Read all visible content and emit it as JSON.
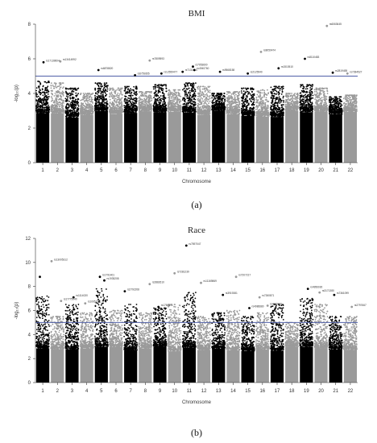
{
  "chart_data": [
    {
      "type": "scatter",
      "title": "BMI",
      "ylabel": "-log₁₀(p)",
      "xlabel": "Chromosome",
      "caption": "(a)",
      "ylim": [
        0,
        8
      ],
      "yticks": [
        0,
        2,
        4,
        6,
        8
      ],
      "chromosomes": [
        "1",
        "2",
        "3",
        "4",
        "5",
        "6",
        "7",
        "8",
        "9",
        "10",
        "11",
        "12",
        "13",
        "14",
        "15",
        "16",
        "17",
        "18",
        "19",
        "20",
        "21",
        "22"
      ],
      "threshold": 5,
      "threshold_color": "#5060a8",
      "colors": [
        "#000000",
        "#9a9a9a"
      ],
      "chrom_peaks": [
        4.7,
        4.6,
        4.3,
        4.0,
        4.6,
        4.3,
        4.4,
        4.1,
        4.5,
        4.2,
        4.6,
        4.4,
        4.0,
        4.1,
        4.3,
        4.2,
        4.4,
        4.0,
        4.5,
        4.3,
        3.8,
        3.9
      ],
      "hits": [
        {
          "chr": 1,
          "pos": 0.55,
          "y": 5.8,
          "label": "rs17139604"
        },
        {
          "chr": 2,
          "pos": 0.7,
          "y": 5.85,
          "label": "rs13414992"
        },
        {
          "chr": 5,
          "pos": 0.3,
          "y": 5.35,
          "label": "rs6878820"
        },
        {
          "chr": 7,
          "pos": 0.8,
          "y": 5.05,
          "label": "rs6759355"
        },
        {
          "chr": 8,
          "pos": 0.8,
          "y": 5.9,
          "label": "rs7809593"
        },
        {
          "chr": 9,
          "pos": 0.6,
          "y": 5.15,
          "label": "rs12559477"
        },
        {
          "chr": 11,
          "pos": 0.05,
          "y": 5.25,
          "label": "rs7131414"
        },
        {
          "chr": 11,
          "pos": 0.75,
          "y": 5.55,
          "label": "rs7953600"
        },
        {
          "chr": 11,
          "pos": 0.85,
          "y": 5.35,
          "label": "rs4940760"
        },
        {
          "chr": 13,
          "pos": 0.6,
          "y": 5.25,
          "label": "rs9568158"
        },
        {
          "chr": 15,
          "pos": 0.5,
          "y": 5.15,
          "label": "rs2125540"
        },
        {
          "chr": 16,
          "pos": 0.4,
          "y": 6.4,
          "label": "rs8050474"
        },
        {
          "chr": 17,
          "pos": 0.6,
          "y": 5.45,
          "label": "rs1510510"
        },
        {
          "chr": 19,
          "pos": 0.4,
          "y": 6.0,
          "label": "rs8110483"
        },
        {
          "chr": 20,
          "pos": 0.9,
          "y": 7.9,
          "label": "rs6063645"
        },
        {
          "chr": 21,
          "pos": 0.3,
          "y": 5.2,
          "label": "rs2819455"
        },
        {
          "chr": 22,
          "pos": 0.3,
          "y": 5.15,
          "label": "rs7284527"
        }
      ]
    },
    {
      "type": "scatter",
      "title": "Race",
      "ylabel": "-log₁₀(p)",
      "xlabel": "Chromosome",
      "caption": "(b)",
      "ylim": [
        0,
        12
      ],
      "yticks": [
        0,
        2,
        4,
        6,
        8,
        10,
        12
      ],
      "chromosomes": [
        "1",
        "2",
        "3",
        "4",
        "5",
        "6",
        "7",
        "8",
        "9",
        "10",
        "11",
        "12",
        "13",
        "14",
        "15",
        "16",
        "17",
        "18",
        "19",
        "20",
        "21",
        "22"
      ],
      "threshold": 5,
      "threshold_color": "#5060a8",
      "colors": [
        "#000000",
        "#9a9a9a"
      ],
      "chrom_peaks": [
        7.2,
        5.5,
        6.5,
        5.8,
        7.8,
        6.0,
        6.5,
        5.8,
        6.2,
        6.5,
        7.5,
        5.5,
        5.8,
        6.0,
        5.5,
        5.8,
        6.5,
        5.0,
        7.0,
        6.5,
        5.5,
        5.5
      ],
      "hits": [
        {
          "chr": 1,
          "pos": 0.3,
          "y": 8.8,
          "label": ""
        },
        {
          "chr": 2,
          "pos": 0.1,
          "y": 10.1,
          "label": "rs13005312"
        },
        {
          "chr": 2,
          "pos": 0.75,
          "y": 6.8,
          "label": "rs17775040"
        },
        {
          "chr": 3,
          "pos": 0.6,
          "y": 7.1,
          "label": "rs1114020"
        },
        {
          "chr": 4,
          "pos": 0.4,
          "y": 6.6,
          "label": "rs10951542"
        },
        {
          "chr": 5,
          "pos": 0.4,
          "y": 8.8,
          "label": "rs1791401"
        },
        {
          "chr": 5,
          "pos": 0.7,
          "y": 8.5,
          "label": "rs1935208"
        },
        {
          "chr": 7,
          "pos": 0.1,
          "y": 7.6,
          "label": "rs2792208"
        },
        {
          "chr": 8,
          "pos": 0.8,
          "y": 8.2,
          "label": "rs2882610"
        },
        {
          "chr": 9,
          "pos": 0.4,
          "y": 6.3,
          "label": "rs1786990"
        },
        {
          "chr": 10,
          "pos": 0.5,
          "y": 9.1,
          "label": "rs7281239"
        },
        {
          "chr": 11,
          "pos": 0.3,
          "y": 11.4,
          "label": "rs7597047"
        },
        {
          "chr": 12,
          "pos": 0.3,
          "y": 8.3,
          "label": "rs11169869"
        },
        {
          "chr": 13,
          "pos": 0.8,
          "y": 7.3,
          "label": "rs3919381"
        },
        {
          "chr": 14,
          "pos": 0.7,
          "y": 8.8,
          "label": "rs7207217"
        },
        {
          "chr": 15,
          "pos": 0.6,
          "y": 6.2,
          "label": "rs4986680"
        },
        {
          "chr": 16,
          "pos": 0.3,
          "y": 7.1,
          "label": "rs7260871"
        },
        {
          "chr": 16,
          "pos": 0.85,
          "y": 6.4,
          "label": "rs4939981"
        },
        {
          "chr": 19,
          "pos": 0.6,
          "y": 7.8,
          "label": "rs4956030"
        },
        {
          "chr": 20,
          "pos": 0.4,
          "y": 7.5,
          "label": "rs3171380"
        },
        {
          "chr": 21,
          "pos": 0.4,
          "y": 7.3,
          "label": "rs7361099"
        },
        {
          "chr": 22,
          "pos": 0.6,
          "y": 6.3,
          "label": "rs2797667"
        }
      ]
    }
  ]
}
